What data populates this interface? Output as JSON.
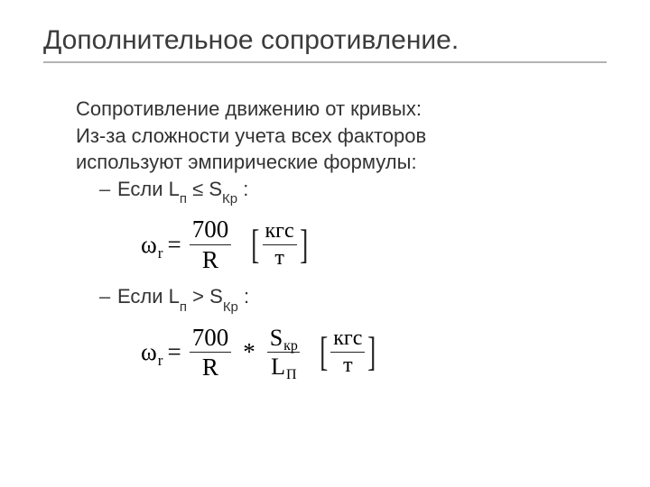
{
  "title": "Дополнительное сопротивление.",
  "intro": {
    "line1": "Сопротивление движению от кривых:",
    "line2": "Из-за сложности учета всех факторов",
    "line3": "используют эмпирические формулы:"
  },
  "bullets": {
    "dash": "–",
    "b1_prefix": "Если ",
    "b1_L": "L",
    "b1_Lsub": "п",
    "b1_rel": " ≤ ",
    "b1_S": "S",
    "b1_Ssub": "Кр",
    "b1_suffix": " :",
    "b2_prefix": "Если ",
    "b2_L": "L",
    "b2_Lsub": "п",
    "b2_rel": " > ",
    "b2_S": "S",
    "b2_Ssub": "Кр",
    "b2_suffix": " :"
  },
  "formula": {
    "omega": "ω",
    "sub_r": "r",
    "eq": "=",
    "num700": "700",
    "denR": "R",
    "star": "*",
    "S": "S",
    "S_sub": "кр",
    "L": "L",
    "L_sub": "П",
    "unit_top": "кгс",
    "unit_bot": "т",
    "lbracket": "[",
    "rbracket": "]"
  },
  "style": {
    "title_color": "#3b3b3b",
    "underline_color": "#b3b3b3",
    "text_color": "#333333",
    "title_fontsize": 30,
    "body_fontsize": 22,
    "formula_fontsize": 27
  }
}
